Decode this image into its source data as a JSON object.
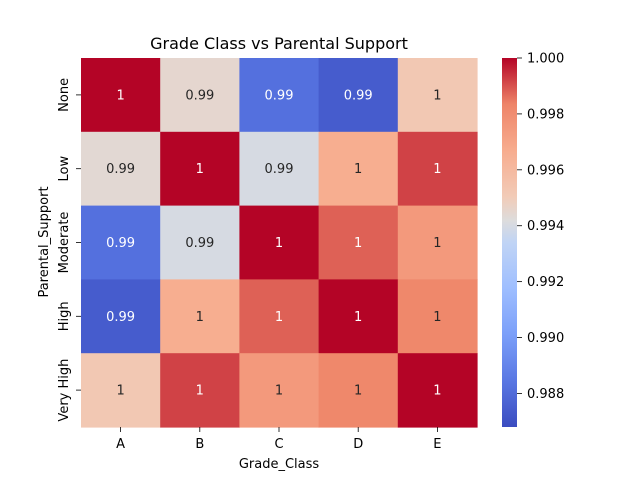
{
  "chart_data": {
    "type": "heatmap",
    "title": "Grade Class vs Parental Support",
    "xlabel": "Grade_Class",
    "ylabel": "Parental_Support",
    "x_categories": [
      "A",
      "B",
      "C",
      "D",
      "E"
    ],
    "y_categories": [
      "None",
      "Low",
      "Moderate",
      "High",
      "Very High"
    ],
    "values": [
      [
        1.0,
        0.9945,
        0.9882,
        0.9874,
        0.9952
      ],
      [
        0.9944,
        1.0,
        0.994,
        0.9966,
        0.9992
      ],
      [
        0.9882,
        0.994,
        1.0,
        0.9988,
        0.9975
      ],
      [
        0.9874,
        0.9966,
        0.9988,
        1.0,
        0.9982
      ],
      [
        0.9952,
        0.9992,
        0.9975,
        0.9982,
        1.0
      ]
    ],
    "labels": [
      [
        "1",
        "0.99",
        "0.99",
        "0.99",
        "1"
      ],
      [
        "0.99",
        "1",
        "0.99",
        "1",
        "1"
      ],
      [
        "0.99",
        "0.99",
        "1",
        "1",
        "1"
      ],
      [
        "0.99",
        "1",
        "1",
        "1",
        "1"
      ],
      [
        "1",
        "1",
        "1",
        "1",
        "1"
      ]
    ],
    "colormap": "coolwarm",
    "colorbar": {
      "vmin": 0.9868,
      "vmax": 1.0,
      "ticks": [
        0.988,
        0.99,
        0.992,
        0.994,
        0.996,
        0.998,
        1.0
      ],
      "tick_labels": [
        "0.988",
        "0.990",
        "0.992",
        "0.994",
        "0.996",
        "0.998",
        "1.000"
      ]
    }
  }
}
